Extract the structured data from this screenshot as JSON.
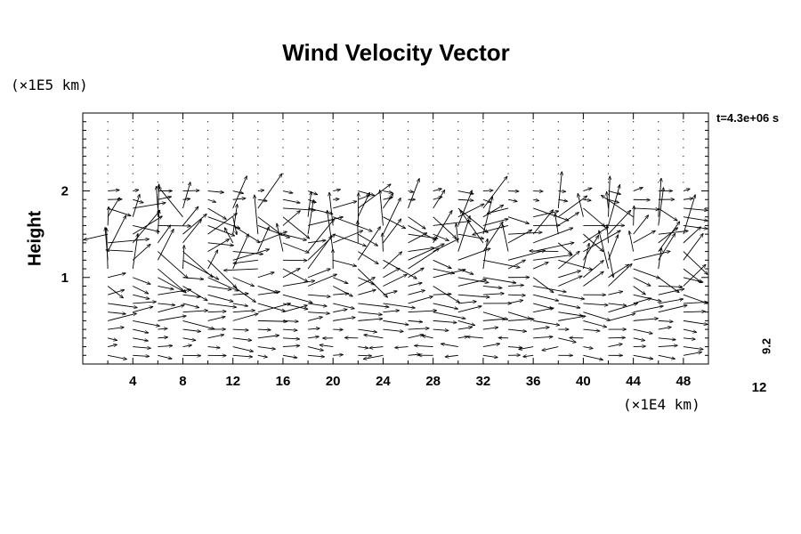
{
  "chart_data": {
    "type": "vector-field",
    "title": "Wind Velocity Vector",
    "ylabel": "Height",
    "x_unit": "(×1E4 km)",
    "y_unit": "(×1E5 km)",
    "time_label": "t=4.3e+06 s",
    "xlim": [
      0,
      50
    ],
    "ylim": [
      0,
      2.9
    ],
    "x_ticks": [
      4,
      8,
      12,
      16,
      20,
      24,
      28,
      32,
      36,
      40,
      44,
      48
    ],
    "y_ticks": [
      1,
      2
    ],
    "vector_scale": {
      "max_label": "12",
      "value_label": "9.2"
    },
    "grid": {
      "x_spacing": 2,
      "y_rows": [
        0.1,
        0.2,
        0.3,
        0.4,
        0.5,
        0.6,
        0.7,
        0.8,
        0.9,
        1.0,
        1.1,
        1.2,
        1.3,
        1.4,
        1.5,
        1.6,
        1.7,
        1.8,
        1.9,
        2.0,
        2.1,
        2.2,
        2.3,
        2.4,
        2.5,
        2.6,
        2.7,
        2.8
      ]
    },
    "layers": [
      {
        "ymin": 0.05,
        "ymax": 0.45,
        "direction": "mostly eastward, some westward near x 20-40",
        "mean_speed": "moderate"
      },
      {
        "ymin": 0.45,
        "ymax": 1.0,
        "direction": "eastward",
        "mean_speed": "strong"
      },
      {
        "ymin": 1.0,
        "ymax": 1.8,
        "direction": "turbulent, mixed",
        "mean_speed": "strong"
      },
      {
        "ymin": 1.8,
        "ymax": 2.05,
        "direction": "eastward, weak",
        "mean_speed": "weak"
      },
      {
        "ymin": 2.05,
        "ymax": 2.9,
        "direction": "calm",
        "mean_speed": "near zero"
      }
    ]
  }
}
